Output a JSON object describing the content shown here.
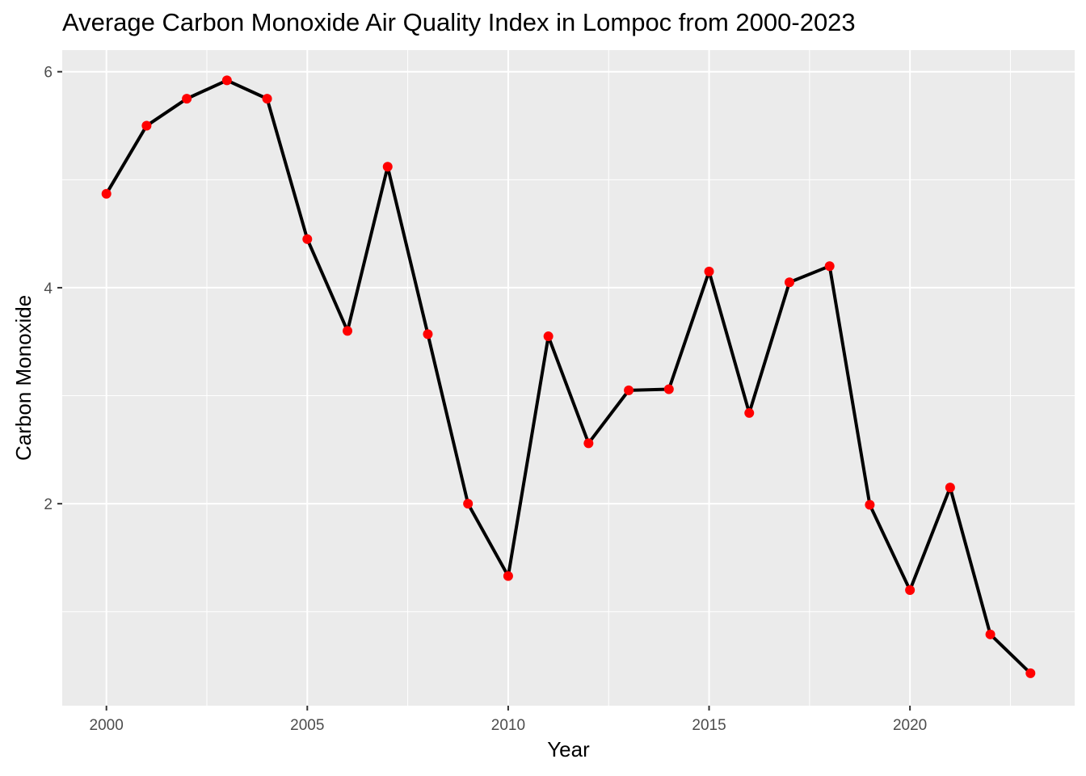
{
  "chart_data": {
    "type": "line",
    "title": "Average Carbon Monoxide Air Quality Index in Lompoc from 2000-2023",
    "xlabel": "Year",
    "ylabel": "Carbon Monoxide",
    "x": [
      2000,
      2001,
      2002,
      2003,
      2004,
      2005,
      2006,
      2007,
      2008,
      2009,
      2010,
      2011,
      2012,
      2013,
      2014,
      2015,
      2016,
      2017,
      2018,
      2019,
      2020,
      2021,
      2022,
      2023
    ],
    "values": [
      4.87,
      5.5,
      5.75,
      5.92,
      5.75,
      4.45,
      3.6,
      5.12,
      3.57,
      2.0,
      1.33,
      3.55,
      2.56,
      3.05,
      3.06,
      4.15,
      2.84,
      4.05,
      4.2,
      1.99,
      1.2,
      2.15,
      0.79,
      0.43
    ],
    "x_ticks": [
      2000,
      2005,
      2010,
      2015,
      2020
    ],
    "y_ticks": [
      2,
      4,
      6
    ],
    "xlim": [
      1998.9,
      2024.1
    ],
    "ylim": [
      0.13,
      6.2
    ],
    "line_color": "#000000",
    "point_color": "#ff0000",
    "panel_color": "#ebebeb",
    "grid": true
  }
}
